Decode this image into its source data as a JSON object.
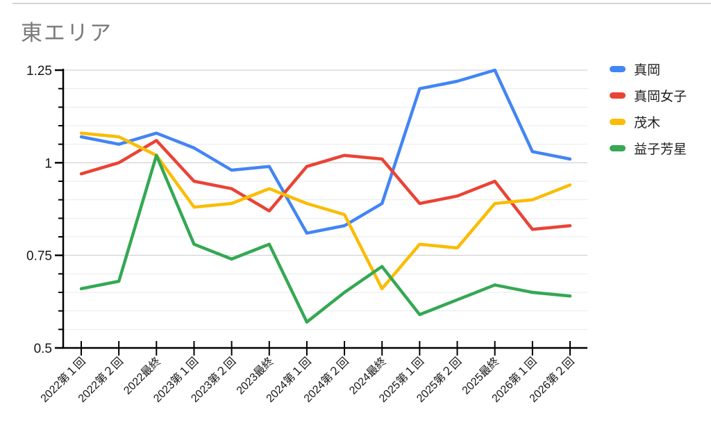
{
  "page": {
    "background": "#ffffff",
    "top_border_color": "#d4d4d4"
  },
  "chart_data": {
    "type": "line",
    "title": "東エリア",
    "title_color": "#7a7a7a",
    "categories": [
      "2022第１回",
      "2022第２回",
      "2022最終",
      "2023第１回",
      "2023第２回",
      "2023最終",
      "2024第１回",
      "2024第２回",
      "2024最終",
      "2025第１回",
      "2025第２回",
      "2025最終",
      "2026第１回",
      "2026第２回"
    ],
    "series": [
      {
        "name": "真岡",
        "color": "#4285F4",
        "values": [
          1.07,
          1.05,
          1.08,
          1.04,
          0.98,
          0.99,
          0.81,
          0.83,
          0.89,
          1.2,
          1.22,
          1.25,
          1.03,
          1.01
        ]
      },
      {
        "name": "真岡女子",
        "color": "#EA4335",
        "values": [
          0.97,
          1.0,
          1.06,
          0.95,
          0.93,
          0.87,
          0.99,
          1.02,
          1.01,
          0.89,
          0.91,
          0.95,
          0.82,
          0.83
        ]
      },
      {
        "name": "茂木",
        "color": "#FBBC04",
        "values": [
          1.08,
          1.07,
          1.02,
          0.88,
          0.89,
          0.93,
          0.89,
          0.86,
          0.66,
          0.78,
          0.77,
          0.89,
          0.9,
          0.94
        ]
      },
      {
        "name": "益子芳星",
        "color": "#34A853",
        "values": [
          0.66,
          0.68,
          1.02,
          0.78,
          0.74,
          0.78,
          0.57,
          0.65,
          0.72,
          0.59,
          0.63,
          0.67,
          0.65,
          0.64
        ]
      }
    ],
    "xlabel": "",
    "ylabel": "",
    "ylim": [
      0.5,
      1.25
    ],
    "y_major_ticks": [
      0.5,
      0.75,
      1,
      1.25
    ],
    "y_tick_labels": [
      "0.5",
      "0.75",
      "1",
      "1.25"
    ],
    "y_minor_step": 0.05,
    "grid": true,
    "legend_position": "right",
    "axis_color": "#000000",
    "gridline_minor_color": "#eaeaea",
    "gridline_major_color": "#c9c9c9"
  }
}
